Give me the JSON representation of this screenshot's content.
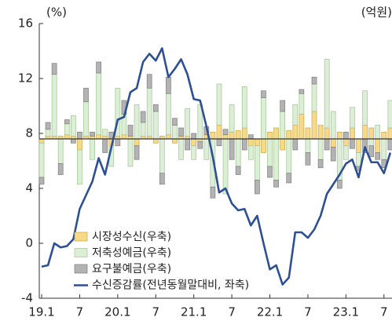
{
  "chart_data": {
    "type": "bar-line",
    "ylabel": "(%)",
    "y2label": "(억원)",
    "categories": [
      "19.1",
      null,
      null,
      null,
      null,
      null,
      "7",
      null,
      null,
      null,
      null,
      null,
      "20.1",
      null,
      null,
      null,
      null,
      null,
      "7",
      null,
      null,
      null,
      null,
      null,
      "21.1",
      null,
      null,
      null,
      null,
      null,
      "7",
      null,
      null,
      null,
      null,
      null,
      "22.1",
      null,
      null,
      null,
      null,
      null,
      "7",
      null,
      null,
      null,
      null,
      null,
      "23.1",
      null,
      null,
      null,
      null,
      null,
      "7",
      null
    ],
    "ylim": [
      -4,
      16
    ],
    "yticks": [
      -4,
      0,
      4,
      8,
      12,
      16
    ],
    "y2lim": [
      -11.6,
      8.4
    ],
    "legend": "lower left",
    "series": [
      {
        "name": "시장성수신(우축)",
        "type": "bar",
        "axis": "y2",
        "color": "#f7d98a",
        "values": [
          -0.3,
          0.2,
          0.2,
          0.2,
          0.3,
          0.2,
          -0.8,
          0.2,
          0.2,
          0.3,
          0.2,
          -0.5,
          0.2,
          0.3,
          0.2,
          -0.5,
          0.2,
          0.2,
          -0.3,
          0.2,
          0.3,
          -0.3,
          0.2,
          0.2,
          -0.5,
          -0.2,
          0.3,
          0.5,
          1.0,
          0.3,
          0.5,
          0.6,
          0.8,
          -0.5,
          -0.5,
          -1.0,
          0.5,
          0.8,
          -0.8,
          0.6,
          1.0,
          1.8,
          0.8,
          2.0,
          1.0,
          0.8,
          -0.6,
          0.5,
          -0.5,
          0.8,
          -1.0,
          1.0,
          0.8,
          -1.0,
          0.5,
          0.8
        ]
      },
      {
        "name": "저축성예금(우축)",
        "type": "bar",
        "axis": "y2",
        "color": "#dcefd6",
        "values": [
          -2.5,
          0.5,
          4.5,
          -1.8,
          0.8,
          1.5,
          -2.5,
          2.5,
          -1.5,
          4.5,
          0.5,
          -1.5,
          3.5,
          1.5,
          -2.0,
          2.5,
          1.0,
          3.5,
          2.0,
          -2.5,
          3.0,
          1.0,
          -1.5,
          2.0,
          -1.0,
          2.5,
          -1.5,
          -3.5,
          3.0,
          -4.0,
          2.0,
          -2.0,
          3.0,
          -1.0,
          -2.5,
          3.0,
          -2.0,
          -3.0,
          2.0,
          -2.5,
          1.5,
          1.5,
          -1.0,
          2.0,
          -1.5,
          5.0,
          2.0,
          -3.0,
          -1.0,
          1.5,
          -1.0,
          2.5,
          -0.5,
          1.0,
          -1.5,
          2.0
        ]
      },
      {
        "name": "요구불예금(우축)",
        "type": "bar",
        "axis": "y2",
        "color": "#b3b3b3",
        "values": [
          -0.5,
          0.5,
          0.8,
          -0.8,
          0.3,
          -0.3,
          0.5,
          1.0,
          0.3,
          0.8,
          -1.0,
          0.5,
          -0.5,
          1.0,
          0.8,
          -1.0,
          0.8,
          1.0,
          0.5,
          -0.8,
          1.2,
          0.5,
          0.6,
          -0.8,
          0.4,
          -0.5,
          0.6,
          -0.8,
          -0.5,
          0.4,
          -1.5,
          -0.6,
          -0.8,
          0.3,
          -1.0,
          0.5,
          -0.8,
          -0.5,
          0.8,
          -0.7,
          -0.8,
          0.3,
          -0.9,
          0.5,
          -0.6,
          -0.8,
          -1.0,
          -0.6,
          0.5,
          -0.7,
          -0.3,
          -1.0,
          -0.8,
          -0.5,
          -0.6,
          -0.8
        ]
      },
      {
        "name": "수신증감률(전년동월말대비, 좌축)",
        "type": "line",
        "color": "#2d4f93",
        "values": [
          -1.7,
          -1.6,
          0,
          -0.3,
          -0.2,
          0.3,
          2.5,
          3.5,
          4.5,
          6.2,
          5.0,
          7.0,
          9.0,
          9.2,
          11.0,
          11.3,
          13.2,
          13.8,
          13.3,
          14.2,
          12.1,
          12.7,
          13.4,
          12.3,
          10.5,
          10.4,
          8.5,
          6.3,
          3.7,
          4.0,
          2.9,
          2.4,
          2.5,
          1.3,
          2.0,
          0.0,
          -1.9,
          -1.6,
          -3.0,
          -2.5,
          0.8,
          0.8,
          0.4,
          1.0,
          2.0,
          3.6,
          4.3,
          5.0,
          5.8,
          6.1,
          4.8,
          7.0,
          5.9,
          5.9,
          5.1,
          6.6
        ]
      }
    ]
  }
}
